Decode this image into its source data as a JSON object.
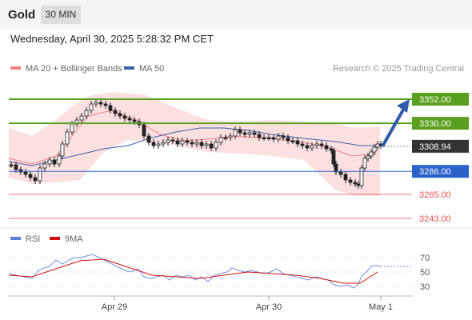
{
  "header": {
    "symbol": "Gold",
    "timeframe": "30 MIN"
  },
  "timestamp": "Wednesday, April 30, 2025 5:28:32 PM CET",
  "legend": {
    "items": [
      {
        "label": "MA 20 + Bollinger Bands",
        "color": "#f08080"
      },
      {
        "label": "MA 50",
        "color": "#3b5ea8"
      }
    ],
    "credit": "Research © 2025 Trading Central"
  },
  "rsi_legend": {
    "items": [
      {
        "label": "RSI",
        "color": "#5b7fd6"
      },
      {
        "label": "9MA",
        "color": "#d01010"
      }
    ]
  },
  "chart_data": {
    "type": "candlestick",
    "x_ticks": [
      "Apr 29",
      "Apr 30",
      "May 1"
    ],
    "price_levels": [
      {
        "value": 3352.0,
        "label": "3352.00",
        "kind": "resistance",
        "color": "#5aa01e"
      },
      {
        "value": 3330.0,
        "label": "3330.00",
        "kind": "resistance",
        "color": "#5aa01e"
      },
      {
        "value": 3308.94,
        "label": "3308.94",
        "kind": "last",
        "color": "#333333"
      },
      {
        "value": 3286.0,
        "label": "3286.00",
        "kind": "pivot",
        "color": "#2a62c9"
      },
      {
        "value": 3265.0,
        "label": "3265.00",
        "kind": "support",
        "color": "#e85050"
      },
      {
        "value": 3243.0,
        "label": "3243.00",
        "kind": "support",
        "color": "#e85050"
      }
    ],
    "rsi_ticks": [
      70,
      50,
      30
    ]
  }
}
